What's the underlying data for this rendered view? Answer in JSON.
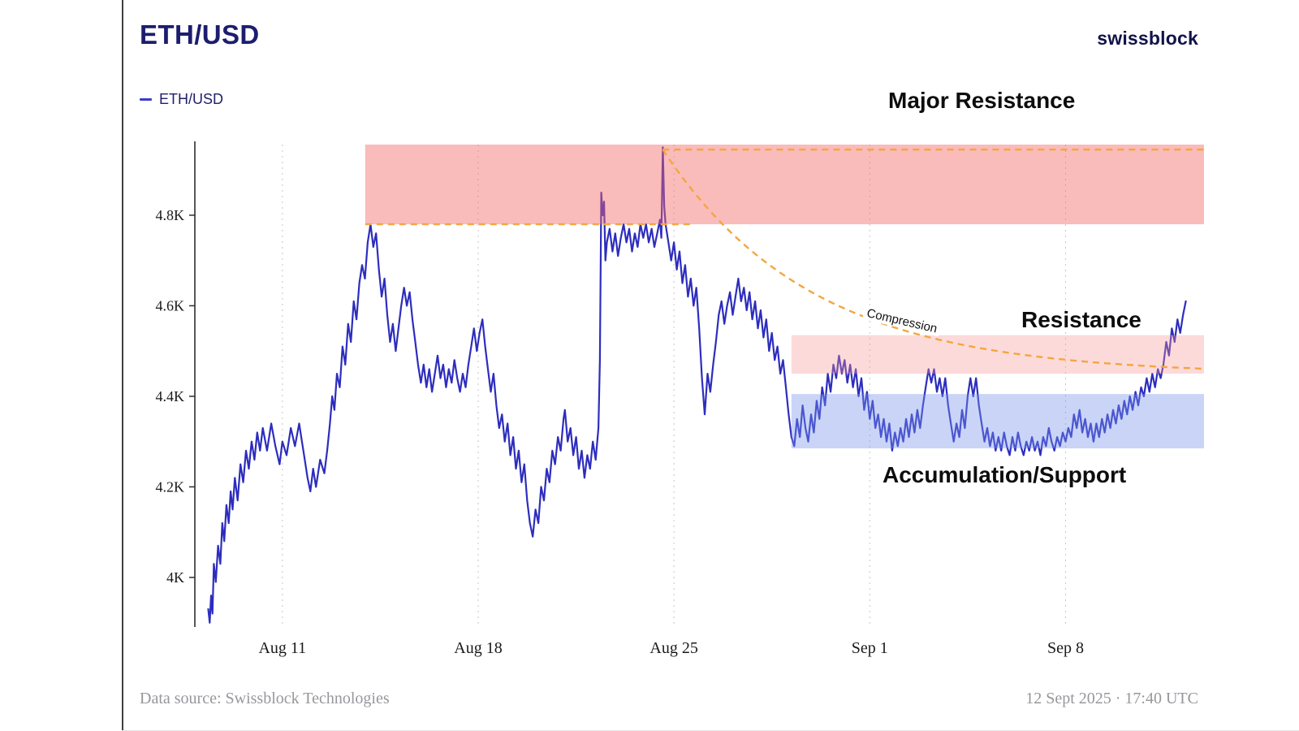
{
  "header": {
    "title": "ETH/USD",
    "brand": "swissblock"
  },
  "legend": {
    "series_label": "ETH/USD"
  },
  "annotations": {
    "major_resistance": "Major Resistance",
    "resistance": "Resistance",
    "accumulation": "Accumulation/Support",
    "compression": "Compression"
  },
  "footer": {
    "source": "Data source: Swissblock Technologies",
    "timestamp": "12 Sept 2025 · 17:40 UTC"
  },
  "chart_data": {
    "type": "line",
    "title": "ETH/USD",
    "series_name": "ETH/USD",
    "x_unit": "days since 2025-08-08",
    "line_color": "#2d2dbe",
    "grid_color": "#c6c6c6",
    "accent_dash_color": "#f3a63e",
    "xlim": [
      -0.13,
      35.95
    ],
    "ylim": [
      3.894,
      4.956
    ],
    "x_ticks": [
      {
        "day": 3,
        "label": "Aug 11"
      },
      {
        "day": 10,
        "label": "Aug 18"
      },
      {
        "day": 17,
        "label": "Aug 25"
      },
      {
        "day": 24,
        "label": "Sep 1"
      },
      {
        "day": 31,
        "label": "Sep 8"
      }
    ],
    "y_ticks": [
      {
        "value": 4.0,
        "label": "4K"
      },
      {
        "value": 4.2,
        "label": "4.2K"
      },
      {
        "value": 4.4,
        "label": "4.4K"
      },
      {
        "value": 4.6,
        "label": "4.6K"
      },
      {
        "value": 4.8,
        "label": "4.8K"
      }
    ],
    "zones": [
      {
        "name": "major-resistance",
        "x0": 5.96,
        "x1": 35.95,
        "y0": 4.78,
        "y1": 4.956,
        "color": "rgba(244,104,104,0.45)"
      },
      {
        "name": "resistance",
        "x0": 21.2,
        "x1": 35.95,
        "y0": 4.45,
        "y1": 4.535,
        "color": "rgba(247,150,150,0.35)"
      },
      {
        "name": "accumulation-support",
        "x0": 21.2,
        "x1": 35.95,
        "y0": 4.285,
        "y1": 4.405,
        "color": "rgba(120,148,235,0.40)"
      }
    ],
    "dashed_lines": [
      {
        "name": "resistance-level",
        "y": 4.78,
        "x0": 5.96,
        "x1": 17.6,
        "color": "#f3a63e"
      },
      {
        "name": "major-resistance-level",
        "y": 4.945,
        "x0": 16.6,
        "x1": 35.95,
        "color": "#f3a63e"
      }
    ],
    "compression_curve": {
      "start_day": 16.6,
      "end_day": 35.95,
      "asymptote": 4.448,
      "amplitude": 0.497,
      "tau": 5.3,
      "color": "#f3a63e"
    },
    "points": [
      [
        0.35,
        3.93
      ],
      [
        0.4,
        3.9
      ],
      [
        0.45,
        3.96
      ],
      [
        0.5,
        3.92
      ],
      [
        0.55,
        4.03
      ],
      [
        0.62,
        3.99
      ],
      [
        0.7,
        4.07
      ],
      [
        0.78,
        4.03
      ],
      [
        0.85,
        4.12
      ],
      [
        0.92,
        4.08
      ],
      [
        1.0,
        4.16
      ],
      [
        1.08,
        4.12
      ],
      [
        1.15,
        4.19
      ],
      [
        1.22,
        4.15
      ],
      [
        1.3,
        4.22
      ],
      [
        1.4,
        4.17
      ],
      [
        1.5,
        4.25
      ],
      [
        1.6,
        4.21
      ],
      [
        1.7,
        4.28
      ],
      [
        1.8,
        4.24
      ],
      [
        1.9,
        4.3
      ],
      [
        2.0,
        4.26
      ],
      [
        2.1,
        4.32
      ],
      [
        2.2,
        4.28
      ],
      [
        2.3,
        4.33
      ],
      [
        2.45,
        4.28
      ],
      [
        2.6,
        4.34
      ],
      [
        2.75,
        4.29
      ],
      [
        2.9,
        4.25
      ],
      [
        3.0,
        4.3
      ],
      [
        3.15,
        4.27
      ],
      [
        3.3,
        4.33
      ],
      [
        3.45,
        4.29
      ],
      [
        3.6,
        4.34
      ],
      [
        3.7,
        4.3
      ],
      [
        3.8,
        4.26
      ],
      [
        3.9,
        4.22
      ],
      [
        4.0,
        4.19
      ],
      [
        4.1,
        4.24
      ],
      [
        4.2,
        4.2
      ],
      [
        4.35,
        4.26
      ],
      [
        4.5,
        4.23
      ],
      [
        4.6,
        4.28
      ],
      [
        4.7,
        4.34
      ],
      [
        4.78,
        4.4
      ],
      [
        4.86,
        4.37
      ],
      [
        4.95,
        4.45
      ],
      [
        5.05,
        4.42
      ],
      [
        5.15,
        4.51
      ],
      [
        5.25,
        4.47
      ],
      [
        5.35,
        4.56
      ],
      [
        5.45,
        4.52
      ],
      [
        5.55,
        4.61
      ],
      [
        5.65,
        4.57
      ],
      [
        5.75,
        4.65
      ],
      [
        5.85,
        4.69
      ],
      [
        5.95,
        4.66
      ],
      [
        6.05,
        4.74
      ],
      [
        6.15,
        4.78
      ],
      [
        6.25,
        4.73
      ],
      [
        6.35,
        4.76
      ],
      [
        6.45,
        4.68
      ],
      [
        6.55,
        4.62
      ],
      [
        6.65,
        4.66
      ],
      [
        6.75,
        4.58
      ],
      [
        6.85,
        4.52
      ],
      [
        6.95,
        4.56
      ],
      [
        7.05,
        4.5
      ],
      [
        7.15,
        4.55
      ],
      [
        7.25,
        4.6
      ],
      [
        7.35,
        4.64
      ],
      [
        7.45,
        4.6
      ],
      [
        7.55,
        4.63
      ],
      [
        7.65,
        4.57
      ],
      [
        7.75,
        4.52
      ],
      [
        7.85,
        4.47
      ],
      [
        7.95,
        4.43
      ],
      [
        8.05,
        4.47
      ],
      [
        8.15,
        4.42
      ],
      [
        8.25,
        4.46
      ],
      [
        8.35,
        4.41
      ],
      [
        8.45,
        4.45
      ],
      [
        8.55,
        4.49
      ],
      [
        8.65,
        4.44
      ],
      [
        8.75,
        4.47
      ],
      [
        8.85,
        4.42
      ],
      [
        8.95,
        4.46
      ],
      [
        9.05,
        4.43
      ],
      [
        9.15,
        4.48
      ],
      [
        9.25,
        4.44
      ],
      [
        9.35,
        4.41
      ],
      [
        9.45,
        4.45
      ],
      [
        9.55,
        4.42
      ],
      [
        9.65,
        4.47
      ],
      [
        9.75,
        4.51
      ],
      [
        9.85,
        4.55
      ],
      [
        9.95,
        4.5
      ],
      [
        10.05,
        4.54
      ],
      [
        10.15,
        4.57
      ],
      [
        10.25,
        4.51
      ],
      [
        10.35,
        4.46
      ],
      [
        10.45,
        4.41
      ],
      [
        10.55,
        4.45
      ],
      [
        10.65,
        4.38
      ],
      [
        10.75,
        4.33
      ],
      [
        10.85,
        4.36
      ],
      [
        10.95,
        4.3
      ],
      [
        11.05,
        4.34
      ],
      [
        11.15,
        4.27
      ],
      [
        11.25,
        4.31
      ],
      [
        11.35,
        4.24
      ],
      [
        11.45,
        4.28
      ],
      [
        11.55,
        4.21
      ],
      [
        11.65,
        4.25
      ],
      [
        11.75,
        4.17
      ],
      [
        11.85,
        4.12
      ],
      [
        11.95,
        4.09
      ],
      [
        12.05,
        4.15
      ],
      [
        12.15,
        4.12
      ],
      [
        12.25,
        4.2
      ],
      [
        12.35,
        4.17
      ],
      [
        12.45,
        4.24
      ],
      [
        12.55,
        4.21
      ],
      [
        12.65,
        4.28
      ],
      [
        12.75,
        4.25
      ],
      [
        12.85,
        4.31
      ],
      [
        12.95,
        4.28
      ],
      [
        13.05,
        4.35
      ],
      [
        13.1,
        4.37
      ],
      [
        13.2,
        4.3
      ],
      [
        13.3,
        4.33
      ],
      [
        13.4,
        4.27
      ],
      [
        13.5,
        4.31
      ],
      [
        13.6,
        4.24
      ],
      [
        13.7,
        4.28
      ],
      [
        13.8,
        4.22
      ],
      [
        13.9,
        4.27
      ],
      [
        14.0,
        4.24
      ],
      [
        14.1,
        4.3
      ],
      [
        14.2,
        4.26
      ],
      [
        14.3,
        4.33
      ],
      [
        14.35,
        4.48
      ],
      [
        14.4,
        4.85
      ],
      [
        14.45,
        4.8
      ],
      [
        14.5,
        4.83
      ],
      [
        14.55,
        4.7
      ],
      [
        14.6,
        4.74
      ],
      [
        14.7,
        4.77
      ],
      [
        14.8,
        4.72
      ],
      [
        14.9,
        4.76
      ],
      [
        15.0,
        4.71
      ],
      [
        15.1,
        4.75
      ],
      [
        15.2,
        4.78
      ],
      [
        15.3,
        4.74
      ],
      [
        15.4,
        4.77
      ],
      [
        15.5,
        4.72
      ],
      [
        15.6,
        4.76
      ],
      [
        15.7,
        4.73
      ],
      [
        15.8,
        4.78
      ],
      [
        15.9,
        4.75
      ],
      [
        16.0,
        4.78
      ],
      [
        16.1,
        4.74
      ],
      [
        16.2,
        4.77
      ],
      [
        16.3,
        4.73
      ],
      [
        16.4,
        4.76
      ],
      [
        16.5,
        4.79
      ],
      [
        16.55,
        4.75
      ],
      [
        16.6,
        4.95
      ],
      [
        16.65,
        4.82
      ],
      [
        16.7,
        4.78
      ],
      [
        16.8,
        4.74
      ],
      [
        16.9,
        4.7
      ],
      [
        17.0,
        4.74
      ],
      [
        17.1,
        4.68
      ],
      [
        17.2,
        4.72
      ],
      [
        17.3,
        4.65
      ],
      [
        17.4,
        4.69
      ],
      [
        17.5,
        4.62
      ],
      [
        17.6,
        4.66
      ],
      [
        17.7,
        4.6
      ],
      [
        17.8,
        4.64
      ],
      [
        17.9,
        4.55
      ],
      [
        18.0,
        4.44
      ],
      [
        18.1,
        4.36
      ],
      [
        18.2,
        4.45
      ],
      [
        18.3,
        4.41
      ],
      [
        18.4,
        4.47
      ],
      [
        18.5,
        4.52
      ],
      [
        18.6,
        4.58
      ],
      [
        18.7,
        4.61
      ],
      [
        18.8,
        4.56
      ],
      [
        18.9,
        4.6
      ],
      [
        19.0,
        4.63
      ],
      [
        19.1,
        4.58
      ],
      [
        19.2,
        4.62
      ],
      [
        19.3,
        4.66
      ],
      [
        19.4,
        4.61
      ],
      [
        19.5,
        4.64
      ],
      [
        19.6,
        4.59
      ],
      [
        19.7,
        4.63
      ],
      [
        19.8,
        4.57
      ],
      [
        19.9,
        4.61
      ],
      [
        20.0,
        4.55
      ],
      [
        20.1,
        4.59
      ],
      [
        20.2,
        4.53
      ],
      [
        20.3,
        4.57
      ],
      [
        20.4,
        4.5
      ],
      [
        20.5,
        4.54
      ],
      [
        20.6,
        4.48
      ],
      [
        20.7,
        4.51
      ],
      [
        20.8,
        4.45
      ],
      [
        20.9,
        4.48
      ],
      [
        21.0,
        4.42
      ],
      [
        21.1,
        4.36
      ],
      [
        21.2,
        4.31
      ],
      [
        21.3,
        4.29
      ],
      [
        21.4,
        4.35
      ],
      [
        21.5,
        4.31
      ],
      [
        21.6,
        4.38
      ],
      [
        21.7,
        4.33
      ],
      [
        21.8,
        4.3
      ],
      [
        21.9,
        4.36
      ],
      [
        22.0,
        4.32
      ],
      [
        22.1,
        4.39
      ],
      [
        22.2,
        4.35
      ],
      [
        22.3,
        4.42
      ],
      [
        22.4,
        4.38
      ],
      [
        22.5,
        4.45
      ],
      [
        22.6,
        4.41
      ],
      [
        22.7,
        4.47
      ],
      [
        22.8,
        4.44
      ],
      [
        22.9,
        4.49
      ],
      [
        23.0,
        4.45
      ],
      [
        23.1,
        4.48
      ],
      [
        23.2,
        4.43
      ],
      [
        23.3,
        4.47
      ],
      [
        23.4,
        4.42
      ],
      [
        23.5,
        4.46
      ],
      [
        23.6,
        4.4
      ],
      [
        23.7,
        4.44
      ],
      [
        23.8,
        4.37
      ],
      [
        23.9,
        4.41
      ],
      [
        24.0,
        4.35
      ],
      [
        24.1,
        4.39
      ],
      [
        24.2,
        4.33
      ],
      [
        24.3,
        4.36
      ],
      [
        24.4,
        4.31
      ],
      [
        24.5,
        4.35
      ],
      [
        24.6,
        4.3
      ],
      [
        24.7,
        4.34
      ],
      [
        24.8,
        4.28
      ],
      [
        24.9,
        4.32
      ],
      [
        25.0,
        4.29
      ],
      [
        25.1,
        4.33
      ],
      [
        25.2,
        4.3
      ],
      [
        25.3,
        4.35
      ],
      [
        25.4,
        4.31
      ],
      [
        25.5,
        4.36
      ],
      [
        25.6,
        4.32
      ],
      [
        25.7,
        4.37
      ],
      [
        25.8,
        4.33
      ],
      [
        25.9,
        4.38
      ],
      [
        26.0,
        4.42
      ],
      [
        26.1,
        4.46
      ],
      [
        26.2,
        4.43
      ],
      [
        26.3,
        4.46
      ],
      [
        26.4,
        4.41
      ],
      [
        26.5,
        4.44
      ],
      [
        26.6,
        4.4
      ],
      [
        26.7,
        4.44
      ],
      [
        26.8,
        4.38
      ],
      [
        26.9,
        4.34
      ],
      [
        27.0,
        4.3
      ],
      [
        27.1,
        4.34
      ],
      [
        27.2,
        4.31
      ],
      [
        27.3,
        4.37
      ],
      [
        27.4,
        4.33
      ],
      [
        27.5,
        4.4
      ],
      [
        27.6,
        4.44
      ],
      [
        27.7,
        4.4
      ],
      [
        27.8,
        4.44
      ],
      [
        27.9,
        4.38
      ],
      [
        28.0,
        4.34
      ],
      [
        28.1,
        4.3
      ],
      [
        28.2,
        4.33
      ],
      [
        28.3,
        4.29
      ],
      [
        28.4,
        4.32
      ],
      [
        28.5,
        4.28
      ],
      [
        28.6,
        4.31
      ],
      [
        28.7,
        4.28
      ],
      [
        28.8,
        4.32
      ],
      [
        28.9,
        4.29
      ],
      [
        29.0,
        4.27
      ],
      [
        29.1,
        4.31
      ],
      [
        29.2,
        4.28
      ],
      [
        29.3,
        4.32
      ],
      [
        29.4,
        4.29
      ],
      [
        29.5,
        4.27
      ],
      [
        29.6,
        4.3
      ],
      [
        29.7,
        4.28
      ],
      [
        29.8,
        4.31
      ],
      [
        29.9,
        4.28
      ],
      [
        30.0,
        4.3
      ],
      [
        30.1,
        4.27
      ],
      [
        30.2,
        4.31
      ],
      [
        30.3,
        4.29
      ],
      [
        30.4,
        4.33
      ],
      [
        30.5,
        4.3
      ],
      [
        30.6,
        4.28
      ],
      [
        30.7,
        4.31
      ],
      [
        30.8,
        4.29
      ],
      [
        30.9,
        4.32
      ],
      [
        31.0,
        4.3
      ],
      [
        31.1,
        4.33
      ],
      [
        31.2,
        4.31
      ],
      [
        31.3,
        4.36
      ],
      [
        31.4,
        4.33
      ],
      [
        31.5,
        4.37
      ],
      [
        31.6,
        4.32
      ],
      [
        31.7,
        4.35
      ],
      [
        31.8,
        4.31
      ],
      [
        31.9,
        4.34
      ],
      [
        32.0,
        4.3
      ],
      [
        32.1,
        4.34
      ],
      [
        32.2,
        4.31
      ],
      [
        32.3,
        4.35
      ],
      [
        32.4,
        4.32
      ],
      [
        32.5,
        4.36
      ],
      [
        32.6,
        4.33
      ],
      [
        32.7,
        4.37
      ],
      [
        32.8,
        4.34
      ],
      [
        32.9,
        4.38
      ],
      [
        33.0,
        4.35
      ],
      [
        33.1,
        4.39
      ],
      [
        33.2,
        4.36
      ],
      [
        33.3,
        4.4
      ],
      [
        33.4,
        4.37
      ],
      [
        33.5,
        4.41
      ],
      [
        33.6,
        4.38
      ],
      [
        33.7,
        4.42
      ],
      [
        33.8,
        4.4
      ],
      [
        33.9,
        4.44
      ],
      [
        34.0,
        4.41
      ],
      [
        34.1,
        4.45
      ],
      [
        34.2,
        4.42
      ],
      [
        34.3,
        4.46
      ],
      [
        34.4,
        4.44
      ],
      [
        34.5,
        4.47
      ],
      [
        34.6,
        4.52
      ],
      [
        34.7,
        4.49
      ],
      [
        34.8,
        4.55
      ],
      [
        34.9,
        4.52
      ],
      [
        35.0,
        4.57
      ],
      [
        35.1,
        4.54
      ],
      [
        35.2,
        4.58
      ],
      [
        35.3,
        4.61
      ]
    ]
  }
}
